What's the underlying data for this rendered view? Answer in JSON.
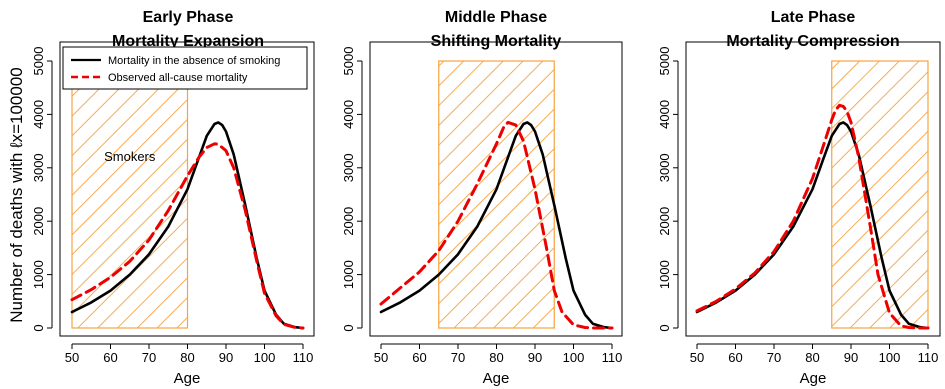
{
  "colors": {
    "base_line": "#000000",
    "observed_line": "#ee0000",
    "smoker_band": "#f7a340"
  },
  "figure": {
    "ylabel": "Number of deaths with ℓx=100000"
  },
  "chart_data": [
    {
      "type": "line",
      "title_line1": "Early Phase",
      "title_line2": "Mortality Expansion",
      "xlabel": "Age",
      "xlim": [
        50,
        110
      ],
      "ylim": [
        0,
        5000
      ],
      "xticks": [
        50,
        60,
        70,
        80,
        90,
        100,
        110
      ],
      "yticks": [
        0,
        1000,
        2000,
        3000,
        4000,
        5000
      ],
      "shaded_region": {
        "x_from": 50,
        "x_to": 80,
        "label": "Smokers"
      },
      "legend": {
        "position": "top-left",
        "entries": [
          "Mortality in the absence of smoking",
          "Observed all-cause mortality"
        ]
      },
      "series": [
        {
          "name": "Mortality in the absence of smoking",
          "style": "solid",
          "x": [
            50,
            55,
            60,
            65,
            70,
            75,
            80,
            83,
            85,
            87,
            88,
            89,
            90,
            92,
            95,
            98,
            100,
            103,
            105,
            108,
            110
          ],
          "y": [
            300,
            480,
            700,
            1000,
            1380,
            1900,
            2600,
            3200,
            3600,
            3820,
            3850,
            3800,
            3680,
            3250,
            2300,
            1300,
            700,
            250,
            80,
            15,
            0
          ]
        },
        {
          "name": "Observed all-cause mortality",
          "style": "dashed",
          "x": [
            50,
            55,
            60,
            65,
            70,
            75,
            80,
            83,
            85,
            87,
            88,
            90,
            92,
            95,
            98,
            100,
            103,
            105,
            108,
            110
          ],
          "y": [
            530,
            720,
            950,
            1250,
            1650,
            2200,
            2850,
            3200,
            3380,
            3450,
            3440,
            3320,
            3000,
            2200,
            1250,
            650,
            230,
            70,
            10,
            0
          ]
        }
      ]
    },
    {
      "type": "line",
      "title_line1": "Middle Phase",
      "title_line2": "Shifting Mortality",
      "xlabel": "Age",
      "xlim": [
        50,
        110
      ],
      "ylim": [
        0,
        5000
      ],
      "xticks": [
        50,
        60,
        70,
        80,
        90,
        100,
        110
      ],
      "yticks": [
        0,
        1000,
        2000,
        3000,
        4000,
        5000
      ],
      "shaded_region": {
        "x_from": 65,
        "x_to": 95
      },
      "series": [
        {
          "name": "Mortality in the absence of smoking",
          "style": "solid",
          "x": [
            50,
            55,
            60,
            65,
            70,
            75,
            80,
            83,
            85,
            87,
            88,
            89,
            90,
            92,
            95,
            98,
            100,
            103,
            105,
            108,
            110
          ],
          "y": [
            300,
            480,
            700,
            1000,
            1380,
            1900,
            2600,
            3200,
            3600,
            3820,
            3850,
            3800,
            3680,
            3250,
            2300,
            1300,
            700,
            250,
            80,
            15,
            0
          ]
        },
        {
          "name": "Observed all-cause mortality",
          "style": "dashed",
          "x": [
            50,
            55,
            60,
            65,
            70,
            75,
            80,
            82,
            83,
            85,
            87,
            90,
            93,
            95,
            97,
            100,
            103,
            105,
            108,
            110
          ],
          "y": [
            450,
            750,
            1050,
            1450,
            2000,
            2700,
            3450,
            3780,
            3850,
            3800,
            3500,
            2600,
            1500,
            700,
            300,
            60,
            10,
            0,
            0,
            0
          ]
        }
      ]
    },
    {
      "type": "line",
      "title_line1": "Late Phase",
      "title_line2": "Mortality Compression",
      "xlabel": "Age",
      "xlim": [
        50,
        110
      ],
      "ylim": [
        0,
        5000
      ],
      "xticks": [
        50,
        60,
        70,
        80,
        90,
        100,
        110
      ],
      "yticks": [
        0,
        1000,
        2000,
        3000,
        4000,
        5000
      ],
      "shaded_region": {
        "x_from": 85,
        "x_to": 110
      },
      "series": [
        {
          "name": "Mortality in the absence of smoking",
          "style": "solid",
          "x": [
            50,
            55,
            60,
            65,
            70,
            75,
            80,
            83,
            85,
            87,
            88,
            89,
            90,
            92,
            95,
            98,
            100,
            103,
            105,
            108,
            110
          ],
          "y": [
            300,
            480,
            700,
            1000,
            1380,
            1900,
            2600,
            3200,
            3600,
            3820,
            3850,
            3800,
            3680,
            3250,
            2300,
            1300,
            700,
            250,
            80,
            15,
            0
          ]
        },
        {
          "name": "Observed all-cause mortality",
          "style": "dashed",
          "x": [
            50,
            55,
            60,
            65,
            70,
            75,
            80,
            83,
            85,
            86,
            87,
            88,
            89,
            90,
            92,
            95,
            97,
            100,
            103,
            105,
            108,
            110
          ],
          "y": [
            320,
            500,
            730,
            1030,
            1430,
            2000,
            2800,
            3450,
            3900,
            4080,
            4170,
            4150,
            4050,
            3850,
            3200,
            1900,
            1000,
            280,
            40,
            10,
            0,
            0
          ]
        }
      ]
    }
  ]
}
